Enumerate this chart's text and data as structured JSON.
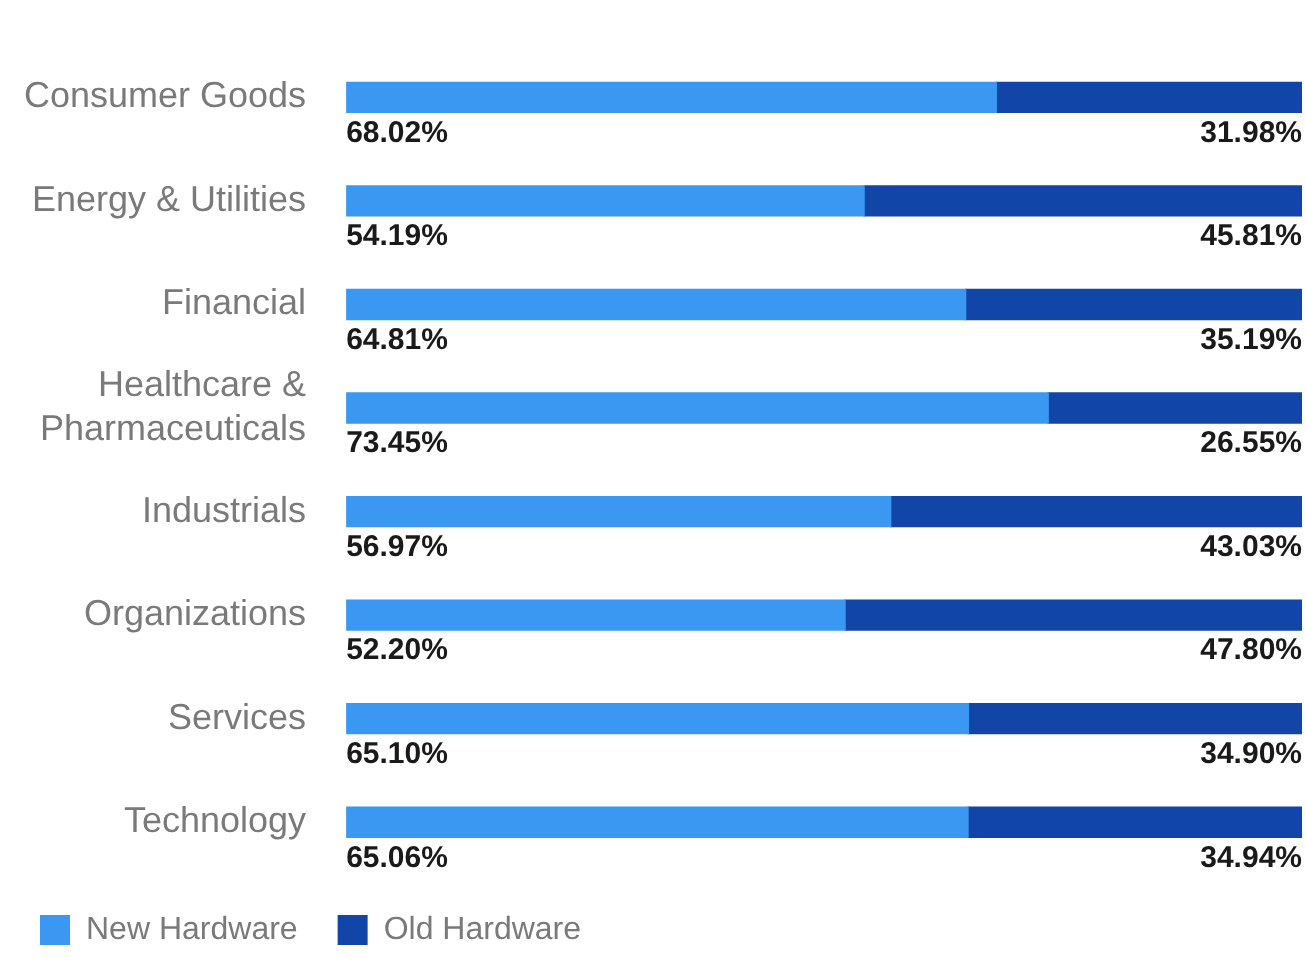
{
  "chart_data": {
    "type": "bar",
    "orientation": "horizontal",
    "stacked": true,
    "legend": "bottom",
    "tick_labels": "y",
    "categories": [
      "Consumer Goods",
      "Energy & Utilities",
      "Financial",
      "Healthcare & Pharmaceuticals",
      "Industrials",
      "Organizations",
      "Services",
      "Technology"
    ],
    "series": [
      {
        "name": "New Hardware",
        "color": "#3a97f2",
        "values": [
          68.02,
          54.19,
          64.81,
          73.45,
          56.97,
          52.2,
          65.1,
          65.06
        ],
        "value_labels": [
          "68.02%",
          "54.19%",
          "64.81%",
          "73.45%",
          "56.97%",
          "52.20%",
          "65.10%",
          "65.06%"
        ]
      },
      {
        "name": "Old Hardware",
        "color": "#1146a8",
        "values": [
          31.98,
          45.81,
          35.19,
          26.55,
          43.03,
          47.8,
          34.9,
          34.94
        ],
        "value_labels": [
          "31.98%",
          "45.81%",
          "35.19%",
          "26.55%",
          "43.03%",
          "47.80%",
          "34.90%",
          "34.94%"
        ]
      }
    ]
  }
}
